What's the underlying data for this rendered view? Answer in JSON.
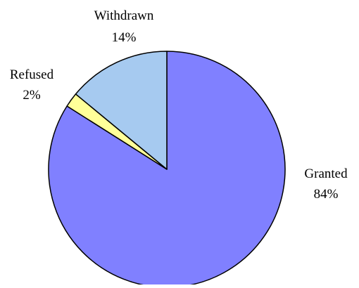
{
  "chart_data": {
    "type": "pie",
    "title": "",
    "legend": "none",
    "start_angle_deg": 0,
    "direction": "clockwise",
    "slices": [
      {
        "label": "Granted",
        "value": 84,
        "pct_label": "84%",
        "color": "#8080FF"
      },
      {
        "label": "Refused",
        "value": 2,
        "pct_label": "2%",
        "color": "#FFFF99"
      },
      {
        "label": "Withdrawn",
        "value": 14,
        "pct_label": "14%",
        "color": "#A6CAF0"
      }
    ],
    "border_color": "#000000"
  }
}
